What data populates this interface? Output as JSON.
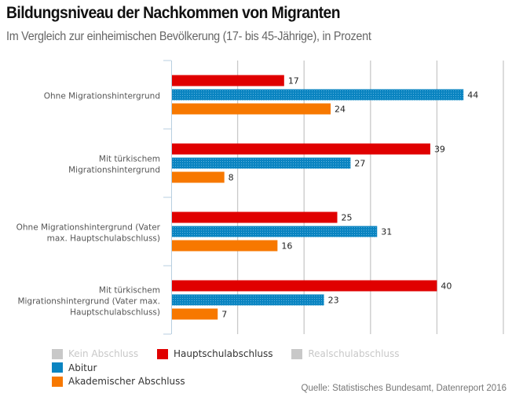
{
  "title": "Bildungsniveau der Nachkommen von Migranten",
  "subtitle": "Im Vergleich zur einheimischen Bevölkerung (17- bis 45-Jährige), in Prozent",
  "source": "Quelle: Statistisches Bundesamt, Datenreport 2016",
  "chart_data": {
    "type": "bar",
    "orientation": "horizontal",
    "title": "Bildungsniveau der Nachkommen von Migranten",
    "subtitle": "Im Vergleich zur einheimischen Bevölkerung (17- bis 45-Jährige), in Prozent",
    "xlabel": "",
    "ylabel": "",
    "xlim": [
      0,
      50
    ],
    "grid": true,
    "gridlines_at": [
      0,
      10,
      20,
      30,
      40,
      50
    ],
    "tick_labels_shown": false,
    "categories": [
      [
        "Ohne Migrationshintergrund"
      ],
      [
        "Mit türkischem",
        "Migrationshintergrund"
      ],
      [
        "Ohne Migrationshintergrund (Vater",
        "max. Hauptschulabschluss)"
      ],
      [
        "Mit türkischem",
        "Migrationshintergrund (Vater max.",
        "Hauptschulabschluss)"
      ]
    ],
    "series": [
      {
        "name": "Hauptschulabschluss",
        "color": "#e00000",
        "pattern": false,
        "values": [
          17,
          39,
          25,
          40
        ]
      },
      {
        "name": "Abitur",
        "color": "#0a84c1",
        "pattern": true,
        "values": [
          44,
          27,
          31,
          23
        ]
      },
      {
        "name": "Akademischer Abschluss",
        "color": "#f77800",
        "pattern": false,
        "values": [
          24,
          8,
          16,
          7
        ]
      }
    ],
    "legend": {
      "placement": "bottom-left",
      "items": [
        {
          "label": "Kein Abschluss",
          "color": "#c8c8c8",
          "enabled": false
        },
        {
          "label": "Hauptschulabschluss",
          "color": "#e00000",
          "enabled": true
        },
        {
          "label": "Realschulabschluss",
          "color": "#c8c8c8",
          "enabled": false
        },
        {
          "label": "Abitur",
          "color": "#0a84c1",
          "enabled": true
        },
        {
          "label": "Akademischer Abschluss",
          "color": "#f77800",
          "enabled": true
        }
      ]
    }
  }
}
